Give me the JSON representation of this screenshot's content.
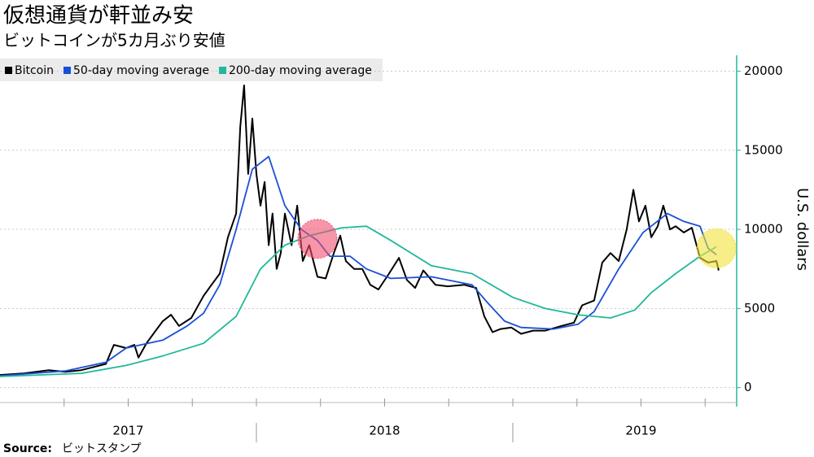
{
  "chart_data": {
    "type": "line",
    "title": "仮想通貨が軒並み安",
    "subtitle": "ビットコインが5カ月ぶり安値",
    "y_label": "U.S. dollars",
    "source_label": "Source:",
    "source": "ビットスタンプ",
    "xlim": [
      2017.0,
      2019.873
    ],
    "xticks": [
      2017.25,
      2017.5,
      2017.75,
      2018,
      2018.25,
      2018.5,
      2018.75,
      2019,
      2019.25,
      2019.5,
      2019.75
    ],
    "years": [
      2017,
      2018,
      2019
    ],
    "ylim": [
      -1200,
      21000
    ],
    "yticks": [
      0,
      5000,
      10000,
      15000,
      20000
    ],
    "grid": true,
    "legend": "top-left",
    "series": [
      {
        "name": "Bitcoin",
        "color": "#000000",
        "x": [
          2017.0,
          2017.095,
          2017.19,
          2017.254,
          2017.317,
          2017.413,
          2017.444,
          2017.492,
          2017.524,
          2017.54,
          2017.571,
          2017.603,
          2017.635,
          2017.667,
          2017.698,
          2017.746,
          2017.794,
          2017.825,
          2017.857,
          2017.889,
          2017.921,
          2017.937,
          2017.952,
          2017.968,
          2017.984,
          2018.0,
          2018.016,
          2018.032,
          2018.048,
          2018.063,
          2018.079,
          2018.095,
          2018.111,
          2018.137,
          2018.159,
          2018.181,
          2018.206,
          2018.238,
          2018.27,
          2018.302,
          2018.327,
          2018.349,
          2018.381,
          2018.413,
          2018.444,
          2018.476,
          2018.517,
          2018.556,
          2018.587,
          2018.619,
          2018.651,
          2018.698,
          2018.746,
          2018.81,
          2018.857,
          2018.889,
          2018.921,
          2018.952,
          2018.994,
          2019.032,
          2019.079,
          2019.127,
          2019.19,
          2019.238,
          2019.27,
          2019.317,
          2019.349,
          2019.381,
          2019.413,
          2019.444,
          2019.47,
          2019.492,
          2019.517,
          2019.54,
          2019.565,
          2019.587,
          2019.613,
          2019.635,
          2019.667,
          2019.698,
          2019.73,
          2019.762,
          2019.794,
          2019.803
        ],
        "values": [
          800,
          900,
          1100,
          1000,
          1100,
          1500,
          2700,
          2500,
          2700,
          1900,
          2800,
          3500,
          4200,
          4600,
          3900,
          4400,
          5800,
          6500,
          7200,
          9500,
          11000,
          16500,
          19100,
          13500,
          17000,
          13500,
          11500,
          13000,
          9000,
          11000,
          7500,
          8500,
          11000,
          9000,
          11500,
          8000,
          9000,
          7000,
          6900,
          8500,
          9600,
          8000,
          7500,
          7500,
          6500,
          6200,
          7200,
          8200,
          6800,
          6300,
          7400,
          6500,
          6400,
          6500,
          6300,
          4500,
          3500,
          3700,
          3800,
          3400,
          3600,
          3600,
          3900,
          4100,
          5200,
          5500,
          7900,
          8500,
          8000,
          10000,
          12500,
          10500,
          11500,
          9500,
          10200,
          11500,
          10000,
          10200,
          9800,
          10100,
          8200,
          7900,
          8000,
          7400
        ]
      },
      {
        "name": "50-day moving average",
        "color": "#1a4fd6",
        "x": [
          2017.0,
          2017.254,
          2017.413,
          2017.492,
          2017.635,
          2017.73,
          2017.794,
          2017.857,
          2017.921,
          2017.984,
          2018.048,
          2018.111,
          2018.175,
          2018.238,
          2018.286,
          2018.365,
          2018.429,
          2018.524,
          2018.683,
          2018.841,
          2018.905,
          2018.968,
          2019.032,
          2019.159,
          2019.254,
          2019.317,
          2019.413,
          2019.508,
          2019.603,
          2019.667,
          2019.73,
          2019.762,
          2019.794
        ],
        "values": [
          750,
          1050,
          1600,
          2500,
          3000,
          3900,
          4700,
          6500,
          10000,
          13800,
          14600,
          11500,
          10000,
          9300,
          8300,
          8300,
          7500,
          6900,
          7000,
          6500,
          5300,
          4200,
          3800,
          3700,
          4000,
          4800,
          7500,
          9800,
          11000,
          10500,
          10200,
          8800,
          8400
        ]
      },
      {
        "name": "200-day moving average",
        "color": "#22b89a",
        "x": [
          2017.0,
          2017.317,
          2017.492,
          2017.635,
          2017.794,
          2017.921,
          2018.016,
          2018.111,
          2018.206,
          2018.333,
          2018.429,
          2018.524,
          2018.683,
          2018.841,
          2019.0,
          2019.127,
          2019.254,
          2019.381,
          2019.476,
          2019.54,
          2019.635,
          2019.73,
          2019.794
        ],
        "values": [
          700,
          900,
          1400,
          2000,
          2800,
          4500,
          7500,
          9000,
          9600,
          10100,
          10200,
          9300,
          7700,
          7200,
          5700,
          5000,
          4600,
          4400,
          4900,
          6000,
          7200,
          8300,
          8900
        ]
      }
    ],
    "highlights": [
      {
        "x": 2018.238,
        "y": 9400,
        "color": "#f0506e"
      },
      {
        "x": 2019.794,
        "y": 8800,
        "color": "#f2e33a"
      }
    ]
  }
}
